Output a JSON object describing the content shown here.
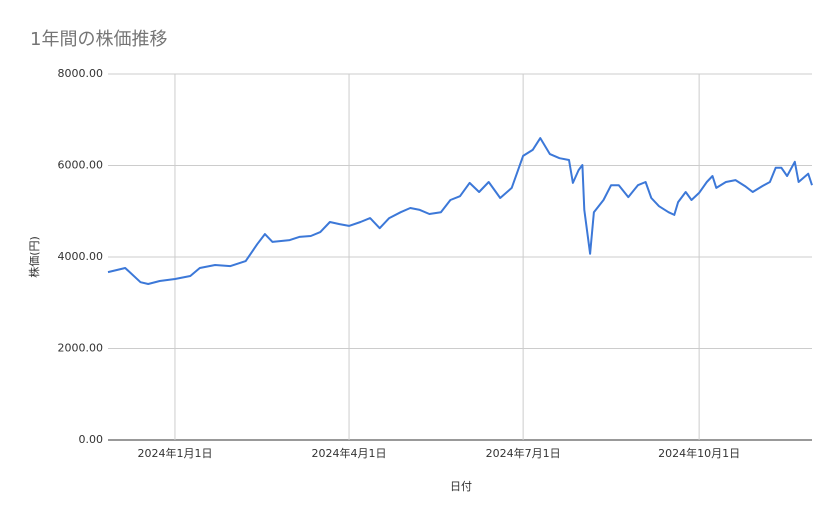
{
  "chart_data": {
    "type": "line",
    "title": "1年間の株価推移",
    "x_label": "日付",
    "y_label": "株価(円)",
    "x": [
      "2023-11-27",
      "2023-12-06",
      "2023-12-14",
      "2023-12-18",
      "2023-12-24",
      "2024-01-01",
      "2024-01-09",
      "2024-01-14",
      "2024-01-22",
      "2024-01-30",
      "2024-02-07",
      "2024-02-13",
      "2024-02-17",
      "2024-02-21",
      "2024-03-01",
      "2024-03-06",
      "2024-03-12",
      "2024-03-17",
      "2024-03-22",
      "2024-03-27",
      "2024-04-01",
      "2024-04-07",
      "2024-04-12",
      "2024-04-17",
      "2024-04-22",
      "2024-04-28",
      "2024-05-03",
      "2024-05-08",
      "2024-05-13",
      "2024-05-19",
      "2024-05-24",
      "2024-05-29",
      "2024-06-03",
      "2024-06-08",
      "2024-06-13",
      "2024-06-19",
      "2024-06-25",
      "2024-06-28",
      "2024-07-01",
      "2024-07-06",
      "2024-07-10",
      "2024-07-15",
      "2024-07-20",
      "2024-07-25",
      "2024-07-27",
      "2024-07-30",
      "2024-08-01",
      "2024-08-02",
      "2024-08-05",
      "2024-08-07",
      "2024-08-12",
      "2024-08-16",
      "2024-08-20",
      "2024-08-25",
      "2024-08-30",
      "2024-09-03",
      "2024-09-06",
      "2024-09-10",
      "2024-09-15",
      "2024-09-18",
      "2024-09-20",
      "2024-09-24",
      "2024-09-27",
      "2024-10-01",
      "2024-10-05",
      "2024-10-08",
      "2024-10-10",
      "2024-10-15",
      "2024-10-20",
      "2024-10-25",
      "2024-10-29",
      "2024-11-03",
      "2024-11-07",
      "2024-11-10",
      "2024-11-13",
      "2024-11-16",
      "2024-11-20",
      "2024-11-22",
      "2024-11-27",
      "2024-11-29"
    ],
    "series": [
      {
        "name": "株価",
        "color": "#3c78d8",
        "values": [
          3670,
          3760,
          3450,
          3410,
          3475,
          3520,
          3585,
          3760,
          3825,
          3800,
          3910,
          4280,
          4500,
          4330,
          4370,
          4440,
          4460,
          4545,
          4765,
          4720,
          4680,
          4765,
          4850,
          4630,
          4850,
          4980,
          5070,
          5030,
          4940,
          4980,
          5245,
          5330,
          5620,
          5420,
          5640,
          5290,
          5510,
          5860,
          6210,
          6340,
          6600,
          6250,
          6160,
          6120,
          5620,
          5900,
          6010,
          5030,
          4070,
          4980,
          5245,
          5570,
          5570,
          5310,
          5570,
          5640,
          5290,
          5110,
          4980,
          4920,
          5200,
          5420,
          5245,
          5400,
          5640,
          5770,
          5510,
          5640,
          5680,
          5550,
          5420,
          5550,
          5640,
          5950,
          5950,
          5770,
          6080,
          5640,
          5820,
          5570
        ]
      }
    ],
    "xlim": [
      "2023-11-27",
      "2024-11-29"
    ],
    "xticks": [
      {
        "value": "2024-01-01",
        "label": "2024年1月1日"
      },
      {
        "value": "2024-04-01",
        "label": "2024年4月1日"
      },
      {
        "value": "2024-07-01",
        "label": "2024年7月1日"
      },
      {
        "value": "2024-10-01",
        "label": "2024年10月1日"
      }
    ],
    "ylim": [
      0,
      8000
    ],
    "yticks": [
      {
        "value": 0,
        "label": "0.00"
      },
      {
        "value": 2000,
        "label": "2000.00"
      },
      {
        "value": 4000,
        "label": "4000.00"
      },
      {
        "value": 6000,
        "label": "6000.00"
      },
      {
        "value": 8000,
        "label": "8000.00"
      }
    ],
    "grid": true
  }
}
